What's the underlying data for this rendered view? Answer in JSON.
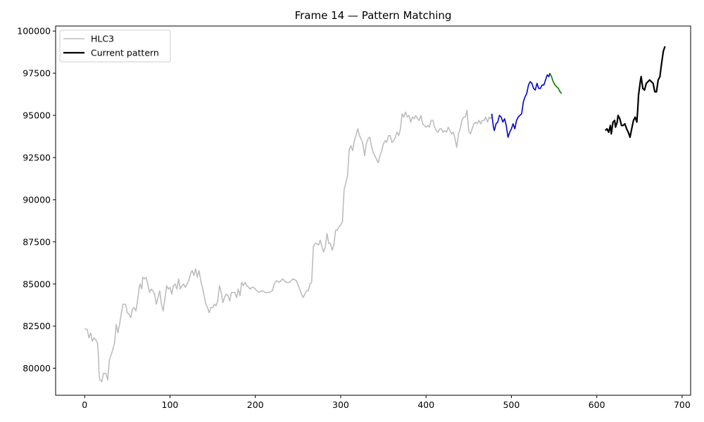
{
  "chart_data": {
    "type": "line",
    "title": "Frame 14 — Pattern Matching",
    "xlabel": "",
    "ylabel": "",
    "xlim": [
      -34,
      710
    ],
    "ylim": [
      78400,
      100300
    ],
    "xticks": [
      0,
      100,
      200,
      300,
      400,
      500,
      600,
      700
    ],
    "yticks": [
      80000,
      82500,
      85000,
      87500,
      90000,
      92500,
      95000,
      97500,
      100000
    ],
    "grid": false,
    "legend": {
      "position": "top-left",
      "entries": [
        {
          "label": "HLC3",
          "color": "#bdbdbd"
        },
        {
          "label": "Current pattern",
          "color": "#000000"
        }
      ]
    },
    "series": [
      {
        "name": "HLC3",
        "color": "#bdbdbd",
        "points": [
          [
            0,
            82350
          ],
          [
            3,
            82300
          ],
          [
            5,
            81800
          ],
          [
            7,
            82100
          ],
          [
            9,
            81600
          ],
          [
            11,
            81800
          ],
          [
            13,
            81700
          ],
          [
            15,
            81500
          ],
          [
            16,
            80900
          ],
          [
            17,
            79600
          ],
          [
            18,
            79300
          ],
          [
            20,
            79200
          ],
          [
            22,
            79700
          ],
          [
            25,
            79700
          ],
          [
            27,
            79300
          ],
          [
            29,
            80500
          ],
          [
            31,
            80800
          ],
          [
            33,
            81100
          ],
          [
            35,
            81500
          ],
          [
            37,
            82600
          ],
          [
            39,
            82100
          ],
          [
            41,
            82600
          ],
          [
            43,
            83300
          ],
          [
            45,
            83800
          ],
          [
            48,
            83800
          ],
          [
            50,
            83300
          ],
          [
            52,
            83200
          ],
          [
            54,
            83000
          ],
          [
            56,
            83500
          ],
          [
            58,
            83600
          ],
          [
            60,
            83400
          ],
          [
            62,
            84000
          ],
          [
            64,
            84800
          ],
          [
            65,
            85000
          ],
          [
            67,
            84700
          ],
          [
            68,
            85400
          ],
          [
            70,
            85300
          ],
          [
            72,
            85400
          ],
          [
            74,
            85000
          ],
          [
            76,
            84500
          ],
          [
            78,
            84700
          ],
          [
            80,
            84600
          ],
          [
            82,
            84400
          ],
          [
            84,
            83800
          ],
          [
            86,
            84200
          ],
          [
            88,
            84600
          ],
          [
            90,
            83800
          ],
          [
            92,
            83400
          ],
          [
            94,
            84100
          ],
          [
            96,
            84900
          ],
          [
            98,
            84700
          ],
          [
            100,
            84800
          ],
          [
            102,
            84400
          ],
          [
            104,
            84900
          ],
          [
            106,
            85000
          ],
          [
            108,
            84700
          ],
          [
            110,
            85300
          ],
          [
            112,
            84700
          ],
          [
            114,
            84900
          ],
          [
            116,
            85000
          ],
          [
            118,
            84800
          ],
          [
            120,
            85000
          ],
          [
            122,
            85200
          ],
          [
            124,
            85600
          ],
          [
            126,
            85800
          ],
          [
            128,
            85500
          ],
          [
            130,
            85900
          ],
          [
            132,
            85400
          ],
          [
            134,
            85800
          ],
          [
            136,
            85200
          ],
          [
            138,
            84800
          ],
          [
            140,
            84300
          ],
          [
            142,
            83800
          ],
          [
            144,
            83600
          ],
          [
            146,
            83300
          ],
          [
            148,
            83600
          ],
          [
            150,
            83600
          ],
          [
            152,
            83800
          ],
          [
            154,
            83700
          ],
          [
            156,
            84000
          ],
          [
            158,
            84900
          ],
          [
            160,
            84500
          ],
          [
            162,
            83900
          ],
          [
            164,
            84200
          ],
          [
            166,
            84400
          ],
          [
            168,
            84300
          ],
          [
            170,
            84000
          ],
          [
            172,
            84500
          ],
          [
            174,
            84500
          ],
          [
            176,
            84500
          ],
          [
            178,
            84200
          ],
          [
            180,
            84700
          ],
          [
            182,
            84300
          ],
          [
            184,
            85100
          ],
          [
            186,
            84900
          ],
          [
            188,
            85100
          ],
          [
            190,
            84900
          ],
          [
            192,
            84800
          ],
          [
            194,
            84700
          ],
          [
            196,
            84800
          ],
          [
            198,
            84800
          ],
          [
            200,
            84700
          ],
          [
            204,
            84500
          ],
          [
            208,
            84600
          ],
          [
            212,
            84500
          ],
          [
            216,
            84500
          ],
          [
            220,
            84600
          ],
          [
            222,
            85000
          ],
          [
            225,
            85200
          ],
          [
            228,
            85100
          ],
          [
            232,
            85300
          ],
          [
            236,
            85100
          ],
          [
            240,
            85100
          ],
          [
            244,
            85300
          ],
          [
            248,
            85200
          ],
          [
            252,
            84700
          ],
          [
            254,
            84400
          ],
          [
            256,
            84200
          ],
          [
            258,
            84400
          ],
          [
            260,
            84600
          ],
          [
            262,
            84600
          ],
          [
            264,
            85000
          ],
          [
            266,
            85100
          ],
          [
            268,
            87200
          ],
          [
            270,
            87400
          ],
          [
            272,
            87400
          ],
          [
            274,
            87300
          ],
          [
            276,
            87600
          ],
          [
            278,
            87200
          ],
          [
            280,
            86900
          ],
          [
            282,
            87200
          ],
          [
            284,
            88000
          ],
          [
            286,
            87400
          ],
          [
            288,
            87400
          ],
          [
            290,
            87000
          ],
          [
            292,
            87300
          ],
          [
            294,
            88200
          ],
          [
            296,
            88200
          ],
          [
            298,
            88400
          ],
          [
            300,
            88500
          ],
          [
            302,
            88700
          ],
          [
            304,
            90600
          ],
          [
            306,
            91000
          ],
          [
            308,
            91400
          ],
          [
            310,
            93000
          ],
          [
            312,
            93200
          ],
          [
            314,
            92900
          ],
          [
            316,
            93500
          ],
          [
            318,
            93800
          ],
          [
            320,
            94200
          ],
          [
            322,
            93800
          ],
          [
            324,
            93600
          ],
          [
            326,
            93300
          ],
          [
            328,
            92600
          ],
          [
            330,
            93300
          ],
          [
            332,
            93600
          ],
          [
            334,
            93700
          ],
          [
            336,
            93200
          ],
          [
            338,
            92800
          ],
          [
            340,
            92600
          ],
          [
            342,
            92400
          ],
          [
            344,
            92200
          ],
          [
            346,
            92600
          ],
          [
            348,
            92900
          ],
          [
            350,
            93300
          ],
          [
            352,
            93500
          ],
          [
            354,
            93400
          ],
          [
            356,
            93800
          ],
          [
            358,
            93800
          ],
          [
            360,
            93400
          ],
          [
            362,
            93500
          ],
          [
            364,
            93700
          ],
          [
            366,
            94000
          ],
          [
            368,
            93800
          ],
          [
            370,
            94200
          ],
          [
            372,
            95100
          ],
          [
            374,
            94900
          ],
          [
            376,
            95200
          ],
          [
            378,
            94900
          ],
          [
            380,
            95000
          ],
          [
            382,
            94600
          ],
          [
            384,
            94900
          ],
          [
            386,
            94800
          ],
          [
            388,
            95000
          ],
          [
            390,
            94800
          ],
          [
            392,
            94700
          ],
          [
            394,
            95000
          ],
          [
            396,
            94500
          ],
          [
            398,
            94400
          ],
          [
            400,
            94300
          ],
          [
            402,
            94400
          ],
          [
            404,
            94300
          ],
          [
            406,
            94700
          ],
          [
            408,
            94700
          ],
          [
            410,
            94300
          ],
          [
            412,
            94100
          ],
          [
            414,
            94000
          ],
          [
            416,
            94200
          ],
          [
            418,
            94200
          ],
          [
            420,
            94000
          ],
          [
            422,
            94100
          ],
          [
            424,
            94000
          ],
          [
            426,
            94300
          ],
          [
            428,
            94100
          ],
          [
            430,
            93900
          ],
          [
            432,
            94000
          ],
          [
            434,
            93600
          ],
          [
            436,
            93100
          ],
          [
            438,
            93900
          ],
          [
            440,
            94200
          ],
          [
            442,
            94700
          ],
          [
            444,
            94900
          ],
          [
            446,
            94900
          ],
          [
            448,
            95300
          ],
          [
            450,
            94100
          ],
          [
            452,
            93900
          ],
          [
            454,
            94200
          ],
          [
            456,
            94500
          ],
          [
            458,
            94600
          ],
          [
            460,
            94500
          ],
          [
            462,
            94700
          ],
          [
            464,
            94500
          ],
          [
            466,
            94700
          ],
          [
            468,
            94700
          ],
          [
            470,
            94900
          ],
          [
            472,
            94600
          ],
          [
            474,
            94900
          ],
          [
            476,
            94800
          ],
          [
            478,
            95100
          ]
        ]
      },
      {
        "name": "",
        "color": "#0000cc",
        "points": [
          [
            477,
            95100
          ],
          [
            479,
            94300
          ],
          [
            480,
            94100
          ],
          [
            482,
            94500
          ],
          [
            484,
            94600
          ],
          [
            486,
            95000
          ],
          [
            488,
            94900
          ],
          [
            490,
            94600
          ],
          [
            492,
            94800
          ],
          [
            494,
            94400
          ],
          [
            496,
            93700
          ],
          [
            498,
            94000
          ],
          [
            500,
            94200
          ],
          [
            502,
            94500
          ],
          [
            504,
            94200
          ],
          [
            506,
            94700
          ],
          [
            508,
            94900
          ],
          [
            510,
            95000
          ],
          [
            512,
            95100
          ],
          [
            514,
            95800
          ],
          [
            516,
            96100
          ],
          [
            518,
            96300
          ],
          [
            520,
            96800
          ],
          [
            522,
            97000
          ],
          [
            524,
            96900
          ],
          [
            526,
            96600
          ],
          [
            528,
            96500
          ],
          [
            530,
            96900
          ],
          [
            532,
            96600
          ],
          [
            534,
            96600
          ],
          [
            536,
            96800
          ],
          [
            538,
            96800
          ],
          [
            540,
            97100
          ],
          [
            542,
            97400
          ],
          [
            544,
            97300
          ],
          [
            545,
            97500
          ]
        ]
      },
      {
        "name": "",
        "color": "#008000",
        "points": [
          [
            545,
            97500
          ],
          [
            547,
            97300
          ],
          [
            549,
            97000
          ],
          [
            551,
            96800
          ],
          [
            553,
            96700
          ],
          [
            555,
            96600
          ],
          [
            557,
            96400
          ],
          [
            559,
            96300
          ]
        ]
      },
      {
        "name": "Current pattern",
        "color": "#000000",
        "points": [
          [
            610,
            94100
          ],
          [
            612,
            94200
          ],
          [
            614,
            94000
          ],
          [
            616,
            94400
          ],
          [
            617,
            93900
          ],
          [
            619,
            94600
          ],
          [
            621,
            94700
          ],
          [
            622,
            94300
          ],
          [
            624,
            94600
          ],
          [
            625,
            95000
          ],
          [
            627,
            94800
          ],
          [
            629,
            94400
          ],
          [
            631,
            94400
          ],
          [
            633,
            94500
          ],
          [
            635,
            94200
          ],
          [
            637,
            94000
          ],
          [
            639,
            93700
          ],
          [
            641,
            94200
          ],
          [
            643,
            94700
          ],
          [
            645,
            94900
          ],
          [
            647,
            94600
          ],
          [
            648,
            95300
          ],
          [
            649,
            96200
          ],
          [
            651,
            97000
          ],
          [
            652,
            97300
          ],
          [
            654,
            96600
          ],
          [
            656,
            96500
          ],
          [
            658,
            96900
          ],
          [
            660,
            97000
          ],
          [
            662,
            97100
          ],
          [
            664,
            97000
          ],
          [
            666,
            96900
          ],
          [
            668,
            96400
          ],
          [
            670,
            96400
          ],
          [
            672,
            97100
          ],
          [
            674,
            97300
          ],
          [
            676,
            98100
          ],
          [
            678,
            98800
          ],
          [
            680,
            99100
          ]
        ]
      }
    ]
  }
}
